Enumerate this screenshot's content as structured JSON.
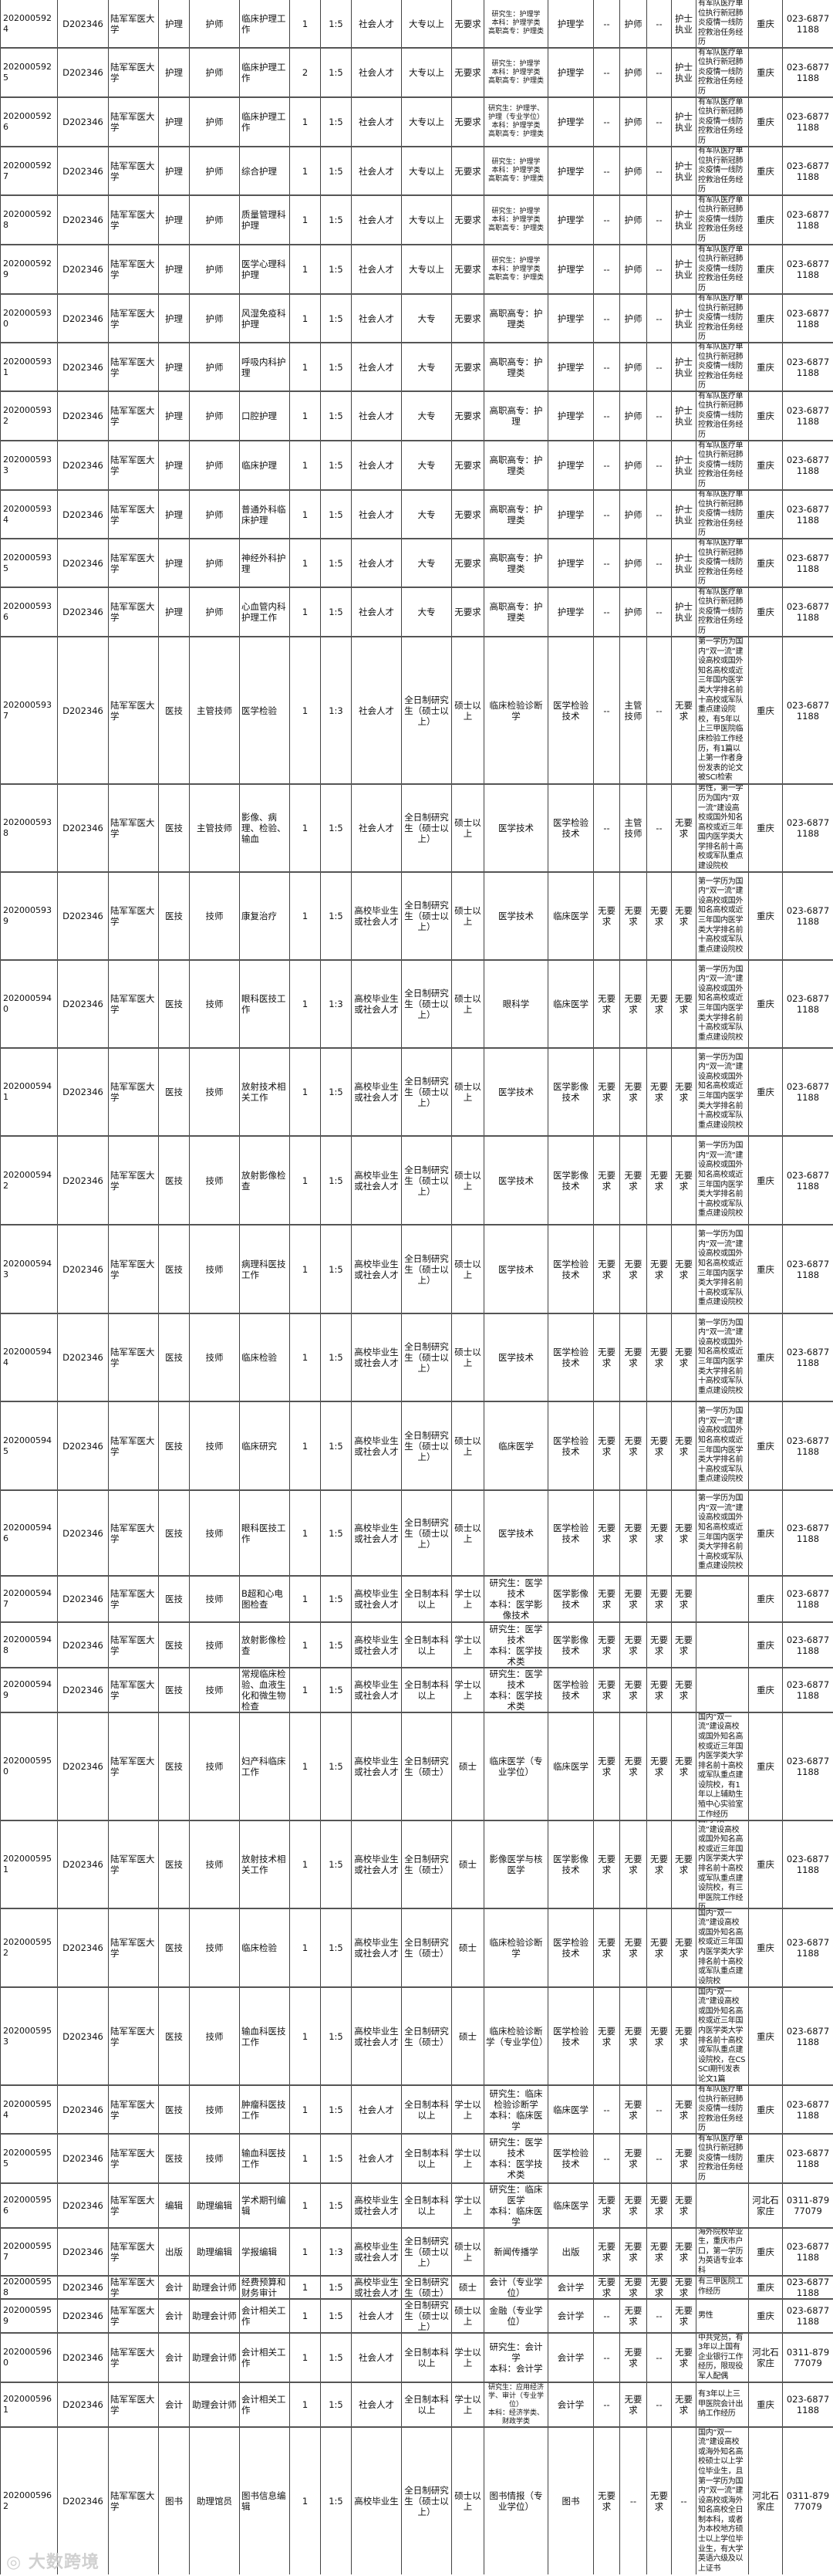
{
  "table": {
    "rows": [
      [
        "2020005924",
        "D202346",
        "陆军军医大学",
        "护理",
        "护师",
        "临床护理工作",
        "1",
        "1:5",
        "社会人才",
        "大专以上",
        "无要求",
        "研究生：护理学\n本科：护理学类\n高职高专：护理类",
        "护理学",
        "--",
        "护师",
        "--",
        "护士执业",
        "有军队医疗单位执行新冠肺炎疫情一线防控救治任务经历",
        "重庆",
        "023-68771188"
      ],
      [
        "2020005925",
        "D202346",
        "陆军军医大学",
        "护理",
        "护师",
        "临床护理工作",
        "2",
        "1:5",
        "社会人才",
        "大专以上",
        "无要求",
        "研究生：护理学\n本科：护理学类\n高职高专：护理类",
        "护理学",
        "--",
        "护师",
        "--",
        "护士执业",
        "有军队医疗单位执行新冠肺炎疫情一线防控救治任务经历",
        "重庆",
        "023-68771188"
      ],
      [
        "2020005926",
        "D202346",
        "陆军军医大学",
        "护理",
        "护师",
        "临床护理工作",
        "1",
        "1:5",
        "社会人才",
        "大专以上",
        "无要求",
        "研究生：护理学、护理（专业学位）\n本科：护理学类\n高职高专：护理类",
        "护理学",
        "--",
        "护师",
        "--",
        "护士执业",
        "有军队医疗单位执行新冠肺炎疫情一线防控救治任务经历",
        "重庆",
        "023-68771188"
      ],
      [
        "2020005927",
        "D202346",
        "陆军军医大学",
        "护理",
        "护师",
        "综合护理",
        "1",
        "1:5",
        "社会人才",
        "大专以上",
        "无要求",
        "研究生：护理学\n本科：护理学类\n高职高专：护理类",
        "护理学",
        "--",
        "护师",
        "--",
        "护士执业",
        "有军队医疗单位执行新冠肺炎疫情一线防控救治任务经历",
        "重庆",
        "023-68771188"
      ],
      [
        "2020005928",
        "D202346",
        "陆军军医大学",
        "护理",
        "护师",
        "质量管理科护理",
        "1",
        "1:5",
        "社会人才",
        "大专以上",
        "无要求",
        "研究生：护理学\n本科：护理学类\n高职高专：护理类",
        "护理学",
        "--",
        "护师",
        "--",
        "护士执业",
        "有军队医疗单位执行新冠肺炎疫情一线防控救治任务经历",
        "重庆",
        "023-68771188"
      ],
      [
        "2020005929",
        "D202346",
        "陆军军医大学",
        "护理",
        "护师",
        "医学心理科护理",
        "1",
        "1:5",
        "社会人才",
        "大专以上",
        "无要求",
        "研究生：护理学\n本科：护理学类\n高职高专：护理类",
        "护理学",
        "--",
        "护师",
        "--",
        "护士执业",
        "有军队医疗单位执行新冠肺炎疫情一线防控救治任务经历",
        "重庆",
        "023-68771188"
      ],
      [
        "2020005930",
        "D202346",
        "陆军军医大学",
        "护理",
        "护师",
        "风湿免疫科护理",
        "1",
        "1:5",
        "社会人才",
        "大专",
        "无要求",
        "高职高专：护理类",
        "护理学",
        "--",
        "护师",
        "--",
        "护士执业",
        "有军队医疗单位执行新冠肺炎疫情一线防控救治任务经历",
        "重庆",
        "023-68771188"
      ],
      [
        "2020005931",
        "D202346",
        "陆军军医大学",
        "护理",
        "护师",
        "呼吸内科护理",
        "1",
        "1:5",
        "社会人才",
        "大专",
        "无要求",
        "高职高专：护理类",
        "护理学",
        "--",
        "护师",
        "--",
        "护士执业",
        "有军队医疗单位执行新冠肺炎疫情一线防控救治任务经历",
        "重庆",
        "023-68771188"
      ],
      [
        "2020005932",
        "D202346",
        "陆军军医大学",
        "护理",
        "护师",
        "口腔护理",
        "1",
        "1:5",
        "社会人才",
        "大专",
        "无要求",
        "高职高专：护理",
        "护理学",
        "--",
        "护师",
        "--",
        "护士执业",
        "有军队医疗单位执行新冠肺炎疫情一线防控救治任务经历",
        "重庆",
        "023-68771188"
      ],
      [
        "2020005933",
        "D202346",
        "陆军军医大学",
        "护理",
        "护师",
        "临床护理",
        "1",
        "1:5",
        "社会人才",
        "大专",
        "无要求",
        "高职高专：护理类",
        "护理学",
        "--",
        "护师",
        "--",
        "护士执业",
        "有军队医疗单位执行新冠肺炎疫情一线防控救治任务经历",
        "重庆",
        "023-68771188"
      ],
      [
        "2020005934",
        "D202346",
        "陆军军医大学",
        "护理",
        "护师",
        "普通外科临床护理",
        "1",
        "1:5",
        "社会人才",
        "大专",
        "无要求",
        "高职高专：护理类",
        "护理学",
        "--",
        "护师",
        "--",
        "护士执业",
        "有军队医疗单位执行新冠肺炎疫情一线防控救治任务经历",
        "重庆",
        "023-68771188"
      ],
      [
        "2020005935",
        "D202346",
        "陆军军医大学",
        "护理",
        "护师",
        "神经外科护理",
        "1",
        "1:5",
        "社会人才",
        "大专",
        "无要求",
        "高职高专：护理类",
        "护理学",
        "--",
        "护师",
        "--",
        "护士执业",
        "有军队医疗单位执行新冠肺炎疫情一线防控救治任务经历",
        "重庆",
        "023-68771188"
      ],
      [
        "2020005936",
        "D202346",
        "陆军军医大学",
        "护理",
        "护师",
        "心血管内科护理工作",
        "1",
        "1:5",
        "社会人才",
        "大专",
        "无要求",
        "高职高专：护理类",
        "护理学",
        "--",
        "护师",
        "--",
        "护士执业",
        "有军队医疗单位执行新冠肺炎疫情一线防控救治任务经历",
        "重庆",
        "023-68771188"
      ],
      [
        "2020005937",
        "D202346",
        "陆军军医大学",
        "医技",
        "主管技师",
        "医学检验",
        "1",
        "1:3",
        "社会人才",
        "全日制研究生（硕士以上）",
        "硕士以上",
        "临床检验诊断学",
        "医学检验技术",
        "--",
        "主管技师",
        "--",
        "无要求",
        "第一学历为国内“双一流”建设高校或国外知名高校或近三年国内医学类大学排名前十高校或军队重点建设院校，有5年以上三甲医院临床检验工作经历，有1篇以上第一作者身份发表的论文被SCI检索",
        "重庆",
        "023-68771188"
      ],
      [
        "2020005938",
        "D202346",
        "陆军军医大学",
        "医技",
        "主管技师",
        "影像、病理、检验、输血",
        "1",
        "1:5",
        "社会人才",
        "全日制研究生（硕士以上）",
        "硕士以上",
        "医学技术",
        "医学检验技术",
        "--",
        "主管技师",
        "--",
        "无要求",
        "男性，第一学历为国内“双一流”建设高校或国外知名高校或近三年国内医学类大学排名前十高校或军队重点建设院校",
        "重庆",
        "023-68771188"
      ],
      [
        "2020005939",
        "D202346",
        "陆军军医大学",
        "医技",
        "技师",
        "康复治疗",
        "1",
        "1:5",
        "高校毕业生或社会人才",
        "全日制研究生（硕士以上）",
        "硕士以上",
        "医学技术",
        "临床医学",
        "无要求",
        "无要求",
        "无要求",
        "无要求",
        "第一学历为国内“双一流”建设高校或国外知名高校或近三年国内医学类大学排名前十高校或军队重点建设院校",
        "重庆",
        "023-68771188"
      ],
      [
        "2020005940",
        "D202346",
        "陆军军医大学",
        "医技",
        "技师",
        "眼科医技工作",
        "1",
        "1:3",
        "高校毕业生或社会人才",
        "全日制研究生（硕士以上）",
        "硕士以上",
        "眼科学",
        "临床医学",
        "无要求",
        "无要求",
        "无要求",
        "无要求",
        "第一学历为国内“双一流”建设高校或国外知名高校或近三年国内医学类大学排名前十高校或军队重点建设院校",
        "重庆",
        "023-68771188"
      ],
      [
        "2020005941",
        "D202346",
        "陆军军医大学",
        "医技",
        "技师",
        "放射技术相关工作",
        "1",
        "1:5",
        "高校毕业生或社会人才",
        "全日制研究生（硕士以上）",
        "硕士以上",
        "医学技术",
        "医学影像技术",
        "无要求",
        "无要求",
        "无要求",
        "无要求",
        "第一学历为国内“双一流”建设高校或国外知名高校或近三年国内医学类大学排名前十高校或军队重点建设院校",
        "重庆",
        "023-68771188"
      ],
      [
        "2020005942",
        "D202346",
        "陆军军医大学",
        "医技",
        "技师",
        "放射影像检查",
        "1",
        "1:5",
        "高校毕业生或社会人才",
        "全日制研究生（硕士以上）",
        "硕士以上",
        "医学技术",
        "医学影像技术",
        "无要求",
        "无要求",
        "无要求",
        "无要求",
        "第一学历为国内“双一流”建设高校或国外知名高校或近三年国内医学类大学排名前十高校或军队重点建设院校",
        "重庆",
        "023-68771188"
      ],
      [
        "2020005943",
        "D202346",
        "陆军军医大学",
        "医技",
        "技师",
        "病理科医技工作",
        "1",
        "1:5",
        "高校毕业生或社会人才",
        "全日制研究生（硕士以上）",
        "硕士以上",
        "医学技术",
        "医学检验技术",
        "无要求",
        "无要求",
        "无要求",
        "无要求",
        "第一学历为国内“双一流”建设高校或国外知名高校或近三年国内医学类大学排名前十高校或军队重点建设院校",
        "重庆",
        "023-68771188"
      ],
      [
        "2020005944",
        "D202346",
        "陆军军医大学",
        "医技",
        "技师",
        "临床检验",
        "1",
        "1:5",
        "高校毕业生或社会人才",
        "全日制研究生（硕士以上）",
        "硕士以上",
        "医学技术",
        "医学检验技术",
        "无要求",
        "无要求",
        "无要求",
        "无要求",
        "第一学历为国内“双一流”建设高校或国外知名高校或近三年国内医学类大学排名前十高校或军队重点建设院校",
        "重庆",
        "023-68771188"
      ],
      [
        "2020005945",
        "D202346",
        "陆军军医大学",
        "医技",
        "技师",
        "临床研究",
        "1",
        "1:5",
        "高校毕业生或社会人才",
        "全日制研究生（硕士以上）",
        "硕士以上",
        "临床医学",
        "医学检验技术",
        "无要求",
        "无要求",
        "无要求",
        "无要求",
        "第一学历为国内“双一流”建设高校或国外知名高校或近三年国内医学类大学排名前十高校或军队重点建设院校",
        "重庆",
        "023-68771188"
      ],
      [
        "2020005946",
        "D202346",
        "陆军军医大学",
        "医技",
        "技师",
        "眼科医技工作",
        "1",
        "1:5",
        "高校毕业生或社会人才",
        "全日制研究生（硕士以上）",
        "硕士以上",
        "医学技术",
        "医学检验技术",
        "无要求",
        "无要求",
        "无要求",
        "无要求",
        "第一学历为国内“双一流”建设高校或国外知名高校或近三年国内医学类大学排名前十高校或军队重点建设院校",
        "重庆",
        "023-68771188"
      ],
      [
        "2020005947",
        "D202346",
        "陆军军医大学",
        "医技",
        "技师",
        "B超和心电图检查",
        "1",
        "1:5",
        "高校毕业生或社会人才",
        "全日制本科以上",
        "学士以上",
        "研究生：医学技术\n本科：医学影像技术",
        "医学影像技术",
        "无要求",
        "无要求",
        "无要求",
        "无要求",
        "",
        "重庆",
        "023-68771188"
      ],
      [
        "2020005948",
        "D202346",
        "陆军军医大学",
        "医技",
        "技师",
        "放射影像检查",
        "1",
        "1:5",
        "高校毕业生或社会人才",
        "全日制本科以上",
        "学士以上",
        "研究生：医学技术\n本科：医学技术类",
        "医学影像技术",
        "无要求",
        "无要求",
        "无要求",
        "无要求",
        "",
        "重庆",
        "023-68771188"
      ],
      [
        "2020005949",
        "D202346",
        "陆军军医大学",
        "医技",
        "技师",
        "常规临床检验、血液生化和微生物检查",
        "1",
        "1:5",
        "高校毕业生或社会人才",
        "全日制本科以上",
        "学士以上",
        "研究生：医学技术\n本科：医学技术类",
        "医学检验技术",
        "无要求",
        "无要求",
        "无要求",
        "无要求",
        "",
        "重庆",
        "023-68771188"
      ],
      [
        "2020005950",
        "D202346",
        "陆军军医大学",
        "医技",
        "技师",
        "妇产科临床工作",
        "1",
        "1:5",
        "高校毕业生或社会人才",
        "全日制研究生（硕士）",
        "硕士",
        "临床医学（专业学位）",
        "临床医学",
        "无要求",
        "无要求",
        "无要求",
        "无要求",
        "国内“双一流”建设高校或国外知名高校或近三年国内医学类大学排名前十高校或军队重点建设院校，有1年以上辅助生殖中心实验室工作经历",
        "重庆",
        "023-68771188"
      ],
      [
        "2020005951",
        "D202346",
        "陆军军医大学",
        "医技",
        "技师",
        "放射技术相关工作",
        "1",
        "1:5",
        "高校毕业生或社会人才",
        "全日制研究生（硕士）",
        "硕士",
        "影像医学与核医学",
        "医学影像技术",
        "无要求",
        "无要求",
        "无要求",
        "无要求",
        "国内“双一流”建设高校或国外知名高校或近三年国内医学类大学排名前十高校或军队重点建设院校，有三甲医院工作经历",
        "重庆",
        "023-68771188"
      ],
      [
        "2020005952",
        "D202346",
        "陆军军医大学",
        "医技",
        "技师",
        "临床检验",
        "1",
        "1:5",
        "高校毕业生或社会人才",
        "全日制研究生（硕士）",
        "硕士",
        "临床检验诊断学",
        "医学检验技术",
        "无要求",
        "无要求",
        "无要求",
        "无要求",
        "国内“双一流”建设高校或国外知名高校或近三年国内医学类大学排名前十高校或军队重点建设院校",
        "重庆",
        "023-68771188"
      ],
      [
        "2020005953",
        "D202346",
        "陆军军医大学",
        "医技",
        "技师",
        "输血科医技工作",
        "1",
        "1:5",
        "高校毕业生或社会人才",
        "全日制研究生（硕士）",
        "硕士",
        "临床检验诊断学（专业学位）",
        "医学检验技术",
        "无要求",
        "无要求",
        "无要求",
        "无要求",
        "国内“双一流”建设高校或国外知名高校或近三年国内医学类大学排名前十高校或军队重点建设院校，在CSSCI期刊发表论文1篇",
        "重庆",
        "023-68771188"
      ],
      [
        "2020005954",
        "D202346",
        "陆军军医大学",
        "医技",
        "技师",
        "肿瘤科医技工作",
        "1",
        "1:5",
        "社会人才",
        "全日制本科以上",
        "学士以上",
        "研究生：临床检验诊断学\n本科：临床医学",
        "临床医学",
        "--",
        "无要求",
        "--",
        "无要求",
        "有军队医疗单位执行新冠肺炎疫情一线防控救治任务经历",
        "重庆",
        "023-68771188"
      ],
      [
        "2020005955",
        "D202346",
        "陆军军医大学",
        "医技",
        "技师",
        "输血科医技工作",
        "1",
        "1:5",
        "社会人才",
        "全日制本科以上",
        "学士以上",
        "研究生：医学技术\n本科：医学技术类",
        "医学检验技术",
        "--",
        "无要求",
        "--",
        "无要求",
        "有军队医疗单位执行新冠肺炎疫情一线防控救治任务经历",
        "重庆",
        "023-68771188"
      ],
      [
        "2020005956",
        "D202346",
        "陆军军医大学",
        "编辑",
        "助理编辑",
        "学术期刊编辑",
        "1",
        "1:5",
        "高校毕业生或社会人才",
        "全日制本科以上",
        "学士以上",
        "研究生：临床医学\n本科：临床医学",
        "临床医学",
        "无要求",
        "无要求",
        "无要求",
        "无要求",
        "",
        "河北石家庄",
        "0311-87977079"
      ],
      [
        "2020005957",
        "D202346",
        "陆军军医大学",
        "出版",
        "助理编辑",
        "学报编辑",
        "1",
        "1:3",
        "高校毕业生或社会人才",
        "全日制研究生（硕士以上）",
        "硕士以上",
        "新闻传播学",
        "出版",
        "无要求",
        "无要求",
        "无要求",
        "无要求",
        "海外院校毕业生，重庆市户口，第一学历为英语专业本科",
        "重庆",
        "023-68771188"
      ],
      [
        "2020005958",
        "D202346",
        "陆军军医大学",
        "会计",
        "助理会计师",
        "经费预算和财务审计",
        "1",
        "1:5",
        "高校毕业生或社会人才",
        "全日制研究生（硕士）",
        "硕士",
        "会计（专业学位）",
        "会计学",
        "无要求",
        "无要求",
        "无要求",
        "无要求",
        "有三甲医院工作经历",
        "重庆",
        "023-68771188"
      ],
      [
        "2020005959",
        "D202346",
        "陆军军医大学",
        "会计",
        "助理会计师",
        "会计相关工作",
        "1",
        "1:5",
        "社会人才",
        "全日制研究生（硕士以上）",
        "硕士以上",
        "金融（专业学位）",
        "会计学",
        "--",
        "无要求",
        "--",
        "无要求",
        "男性",
        "重庆",
        "023-68771188"
      ],
      [
        "2020005960",
        "D202346",
        "陆军军医大学",
        "会计",
        "助理会计师",
        "会计相关工作",
        "1",
        "1:5",
        "社会人才",
        "全日制本科以上",
        "学士以上",
        "研究生：会计学\n本科：会计学",
        "会计学",
        "--",
        "无要求",
        "--",
        "无要求",
        "中共党员，有3年以上国有企业银行工作经历，限现役军人配偶",
        "河北石家庄",
        "0311-87977079"
      ],
      [
        "2020005961",
        "D202346",
        "陆军军医大学",
        "会计",
        "助理会计师",
        "会计相关工作",
        "1",
        "1:5",
        "社会人才",
        "全日制本科以上",
        "学士以上",
        "研究生：应用经济学、审计（专业学位）\n本科：经济学类、财政学类",
        "会计学",
        "--",
        "无要求",
        "--",
        "无要求",
        "有3年以上三甲医院会计出纳工作经历",
        "重庆",
        "023-68771188"
      ],
      [
        "2020005962",
        "D202346",
        "陆军军医大学",
        "图书",
        "助理馆员",
        "图书信息编辑",
        "1",
        "1:5",
        "高校毕业生",
        "全日制研究生（硕士以上）",
        "硕士以上",
        "图书情报（专业学位）",
        "图书",
        "无要求",
        "--",
        "无要求",
        "--",
        "国内“双一流”建设高校或海外知名高校硕士以上学位毕业生，且第一学历为国内“双一流”建设高校或海外知名高校全日制本科，或者为本校地方硕士以上学位毕业生，有大学英语六级及以上证书",
        "河北石家庄",
        "0311-87977079"
      ]
    ]
  },
  "watermark": "大数跨境"
}
